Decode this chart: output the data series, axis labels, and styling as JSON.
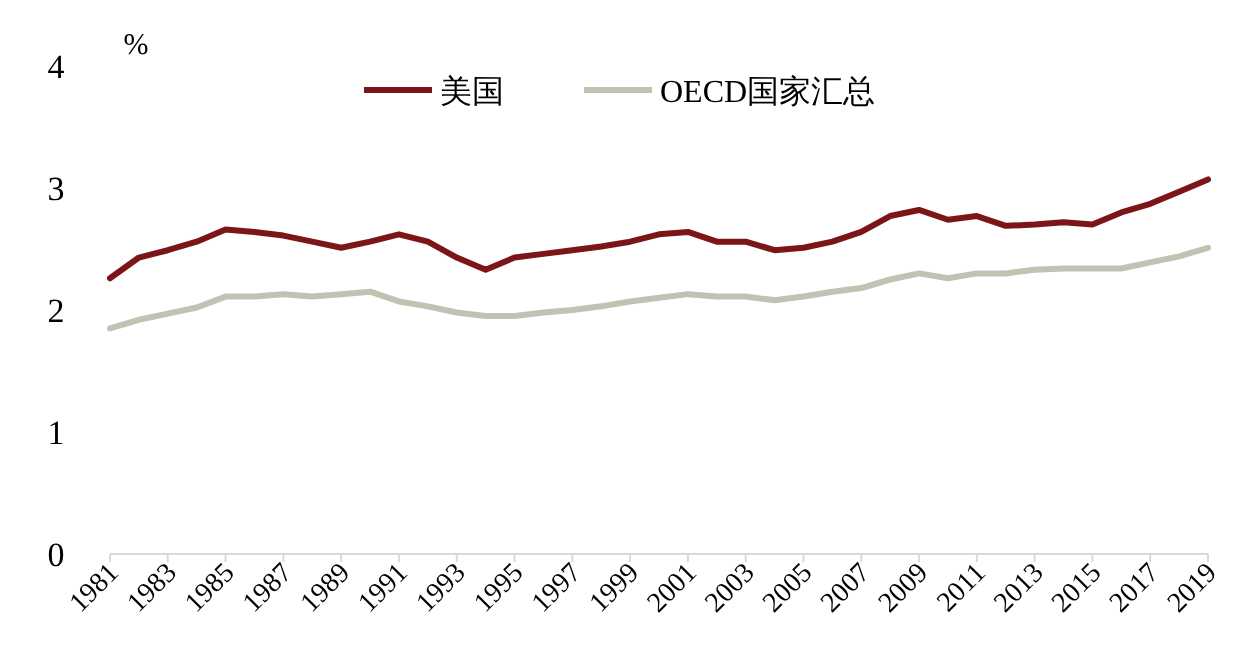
{
  "chart_data": {
    "type": "line",
    "ylabel": "%",
    "x": [
      1981,
      1982,
      1983,
      1984,
      1985,
      1986,
      1987,
      1988,
      1989,
      1990,
      1991,
      1992,
      1993,
      1994,
      1995,
      1996,
      1997,
      1998,
      1999,
      2000,
      2001,
      2002,
      2003,
      2004,
      2005,
      2006,
      2007,
      2008,
      2009,
      2010,
      2011,
      2012,
      2013,
      2014,
      2015,
      2016,
      2017,
      2018,
      2019
    ],
    "series": [
      {
        "name": "美国",
        "color": "#7b1518",
        "values": [
          2.26,
          2.43,
          2.49,
          2.56,
          2.66,
          2.64,
          2.61,
          2.56,
          2.51,
          2.56,
          2.62,
          2.56,
          2.43,
          2.33,
          2.43,
          2.46,
          2.49,
          2.52,
          2.56,
          2.62,
          2.64,
          2.56,
          2.56,
          2.49,
          2.51,
          2.56,
          2.64,
          2.77,
          2.82,
          2.74,
          2.77,
          2.69,
          2.7,
          2.72,
          2.7,
          2.8,
          2.87,
          2.97,
          3.07
        ]
      },
      {
        "name": "OECD国家汇总",
        "color": "#bfc3b1",
        "values": [
          1.85,
          1.92,
          1.97,
          2.02,
          2.11,
          2.11,
          2.13,
          2.11,
          2.13,
          2.15,
          2.07,
          2.03,
          1.98,
          1.95,
          1.95,
          1.98,
          2.0,
          2.03,
          2.07,
          2.1,
          2.13,
          2.11,
          2.11,
          2.08,
          2.11,
          2.15,
          2.18,
          2.25,
          2.3,
          2.26,
          2.3,
          2.3,
          2.33,
          2.34,
          2.34,
          2.34,
          2.39,
          2.44,
          2.51
        ]
      }
    ],
    "xlim": [
      1981,
      2019
    ],
    "xticks": [
      1981,
      1983,
      1985,
      1987,
      1989,
      1991,
      1993,
      1995,
      1997,
      1999,
      2001,
      2003,
      2005,
      2007,
      2009,
      2011,
      2013,
      2015,
      2017,
      2019
    ],
    "ylim": [
      0,
      4
    ],
    "yticks": [
      0,
      1,
      2,
      3,
      4
    ],
    "legend": "top",
    "grid": false,
    "marker": "none",
    "line_style": "solid"
  }
}
